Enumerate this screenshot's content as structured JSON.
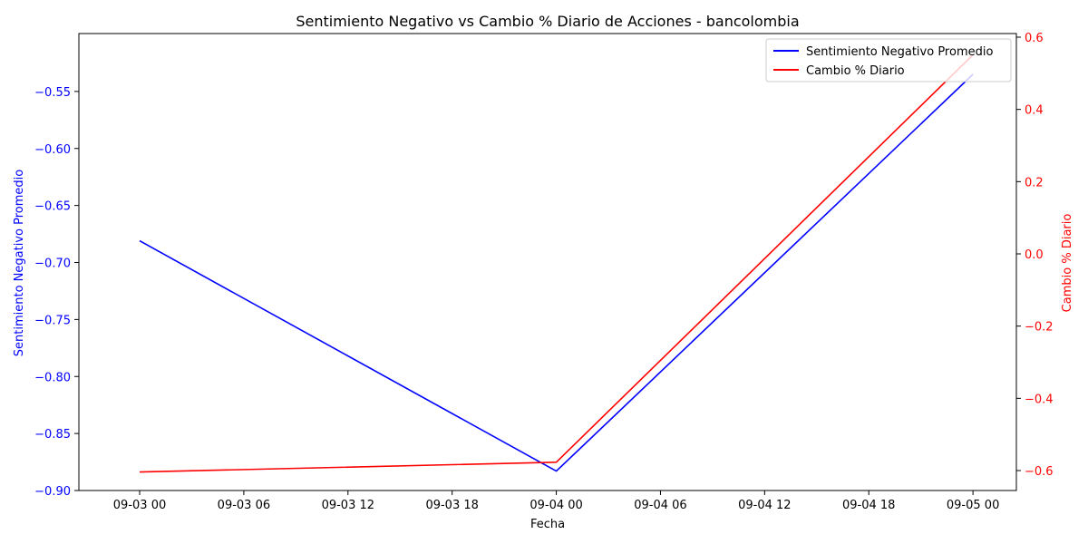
{
  "chart_data": {
    "type": "line",
    "title": "Sentimiento Negativo vs Cambio % Diario de Acciones - bancolombia",
    "xlabel": "Fecha",
    "ylabel_left": "Sentimiento Negativo Promedio",
    "ylabel_right": "Cambio % Diario",
    "x_ticks": [
      "09-03 00",
      "09-03 06",
      "09-03 12",
      "09-03 18",
      "09-04 00",
      "09-04 06",
      "09-04 12",
      "09-04 18",
      "09-05 00"
    ],
    "x_tick_hours": [
      0,
      6,
      12,
      18,
      24,
      30,
      36,
      42,
      48
    ],
    "xlim_hours": [
      -3.5,
      50.5
    ],
    "y_left_ticks": [
      "−0.90",
      "−0.85",
      "−0.80",
      "−0.75",
      "−0.70",
      "−0.65",
      "−0.60",
      "−0.55"
    ],
    "y_left_tick_values": [
      -0.9,
      -0.85,
      -0.8,
      -0.75,
      -0.7,
      -0.65,
      -0.6,
      -0.55
    ],
    "ylim_left": [
      -0.9,
      -0.5
    ],
    "y_right_ticks": [
      "−0.6",
      "−0.4",
      "−0.2",
      "0.0",
      "0.2",
      "0.4",
      "0.6"
    ],
    "y_right_tick_values": [
      -0.6,
      -0.4,
      -0.2,
      0.0,
      0.2,
      0.4,
      0.6
    ],
    "ylim_right": [
      -0.6,
      0.6
    ],
    "series": [
      {
        "name": "Sentimiento Negativo Promedio",
        "color": "#0000ff",
        "axis": "left",
        "x_hours": [
          0,
          24,
          48
        ],
        "values": [
          -0.681,
          -0.883,
          -0.535
        ]
      },
      {
        "name": "Cambio % Diario",
        "color": "#ff0000",
        "axis": "right",
        "x_hours": [
          0,
          24,
          48
        ],
        "values": [
          -0.604,
          -0.577,
          0.551
        ]
      }
    ],
    "legend_position": "top-right",
    "grid": false
  }
}
